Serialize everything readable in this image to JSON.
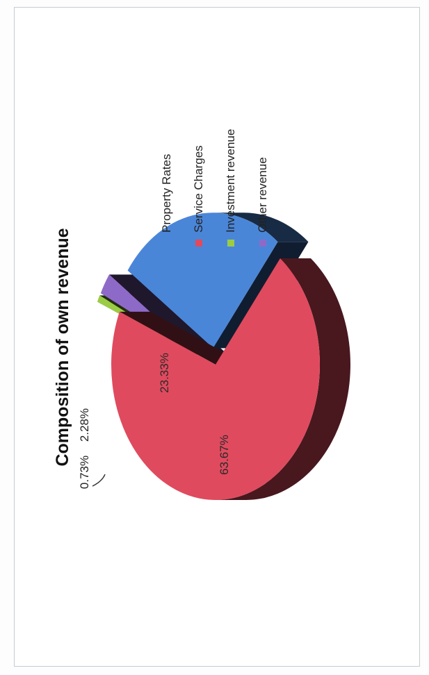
{
  "chart_data": {
    "type": "pie",
    "title": "Composition of own revenue",
    "categories": [
      "Property Rates",
      "Service Charges",
      "Investment revenue",
      "Other revenue"
    ],
    "values": [
      23.33,
      63.67,
      0.73,
      2.28
    ],
    "labels": [
      "23.33%",
      "63.67%",
      "0.73%",
      "2.28%"
    ],
    "colors": [
      "#4a86d8",
      "#e04a5e",
      "#9acd44",
      "#8e6ac8"
    ],
    "legend_position": "right",
    "style": "3d-exploded",
    "rotated": true
  }
}
